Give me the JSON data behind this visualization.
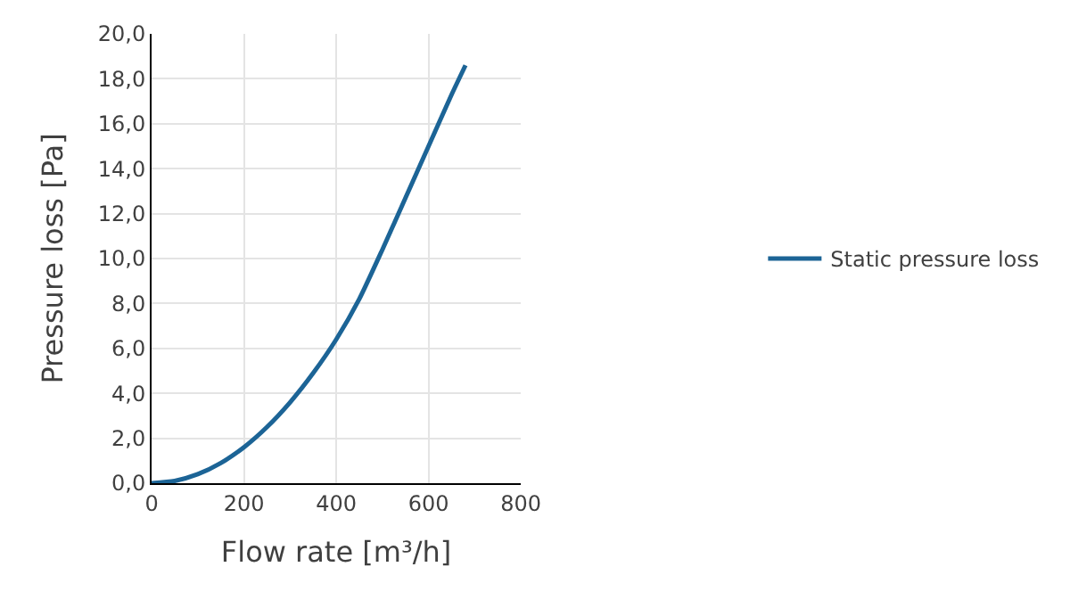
{
  "chart_data": {
    "type": "line",
    "xlabel": "Flow rate [m³/h]",
    "ylabel": "Pressure loss [Pa]",
    "x": [
      0,
      50,
      100,
      150,
      200,
      250,
      300,
      350,
      400,
      450,
      500,
      550,
      600,
      650,
      680
    ],
    "series": [
      {
        "name": "Static pressure loss",
        "color": "#1c6496",
        "values": [
          0,
          0.1,
          0.4,
          0.9,
          1.6,
          2.5,
          3.6,
          4.9,
          6.4,
          8.2,
          10.4,
          12.7,
          15.0,
          17.3,
          18.6
        ]
      }
    ],
    "xlim": [
      0,
      800
    ],
    "xticks": [
      0,
      200,
      400,
      600,
      800
    ],
    "ylim": [
      0,
      20
    ],
    "yticks": [
      {
        "value": 0,
        "label": "0,0"
      },
      {
        "value": 2,
        "label": "2,0"
      },
      {
        "value": 4,
        "label": "4,0"
      },
      {
        "value": 6,
        "label": "6,0"
      },
      {
        "value": 8,
        "label": "8,0"
      },
      {
        "value": 10,
        "label": "10,0"
      },
      {
        "value": 12,
        "label": "12,0"
      },
      {
        "value": 14,
        "label": "14,0"
      },
      {
        "value": 16,
        "label": "16,0"
      },
      {
        "value": 18,
        "label": "18,0"
      },
      {
        "value": 20,
        "label": "20,0"
      }
    ],
    "grid": true,
    "legend": "right",
    "marker": "none",
    "line_style": "solid"
  }
}
